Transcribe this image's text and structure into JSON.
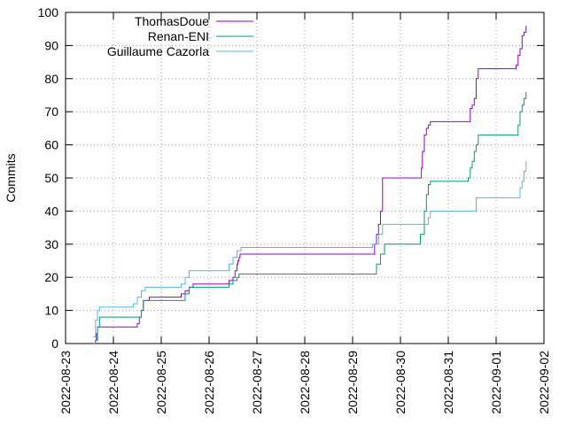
{
  "chart_data": {
    "type": "line",
    "title": "",
    "xlabel": "",
    "ylabel": "Commits",
    "ylim": [
      0,
      100
    ],
    "xlim": [
      "2022-08-23",
      "2022-09-02"
    ],
    "grid": true,
    "grid_style": "dotted",
    "legend_position": "top-left",
    "y_ticks": [
      0,
      10,
      20,
      30,
      40,
      50,
      60,
      70,
      80,
      90,
      100
    ],
    "x_ticks": [
      "2022-08-23",
      "2022-08-24",
      "2022-08-25",
      "2022-08-26",
      "2022-08-27",
      "2022-08-28",
      "2022-08-29",
      "2022-08-30",
      "2022-08-31",
      "2022-09-01",
      "2022-09-02"
    ],
    "series": [
      {
        "name": "ThomasDoue",
        "color": "#9400d3",
        "x": [
          "2022-08-23 14:00",
          "2022-08-23 15:00",
          "2022-08-23 15:30",
          "2022-08-23 16:00",
          "2022-08-24 11:00",
          "2022-08-24 12:00",
          "2022-08-24 13:00",
          "2022-08-24 14:00",
          "2022-08-24 15:00",
          "2022-08-24 18:00",
          "2022-08-25 10:00",
          "2022-08-25 12:00",
          "2022-08-25 14:00",
          "2022-08-25 16:00",
          "2022-08-26 10:00",
          "2022-08-26 12:00",
          "2022-08-26 13:00",
          "2022-08-26 14:00",
          "2022-08-26 14:30",
          "2022-08-26 15:00",
          "2022-08-26 15:30",
          "2022-08-29 10:00",
          "2022-08-29 11:00",
          "2022-08-29 12:00",
          "2022-08-29 13:00",
          "2022-08-29 14:00",
          "2022-08-29 15:00",
          "2022-08-30 10:00",
          "2022-08-30 10:30",
          "2022-08-30 11:00",
          "2022-08-30 12:00",
          "2022-08-30 13:00",
          "2022-08-30 14:00",
          "2022-08-30 15:00",
          "2022-08-31 10:00",
          "2022-08-31 11:00",
          "2022-08-31 12:00",
          "2022-08-31 13:00",
          "2022-08-31 14:00",
          "2022-08-31 15:00",
          "2022-09-01 10:00",
          "2022-09-01 11:00",
          "2022-09-01 12:00",
          "2022-09-01 13:00",
          "2022-09-01 14:00",
          "2022-09-01 15:00"
        ],
        "values": [
          0,
          1,
          3,
          5,
          5,
          6,
          8,
          10,
          13,
          14,
          15,
          16,
          17,
          18,
          19,
          20,
          22,
          24,
          25,
          26,
          27,
          27,
          30,
          33,
          36,
          40,
          50,
          50,
          53,
          58,
          63,
          65,
          66,
          67,
          67,
          71,
          72,
          74,
          80,
          83,
          84,
          87,
          89,
          93,
          94,
          96
        ]
      },
      {
        "name": "Renan-ENI",
        "color": "#009e73",
        "x": [
          "2022-08-23 15:00",
          "2022-08-23 16:00",
          "2022-08-23 17:00",
          "2022-08-24 12:00",
          "2022-08-24 14:00",
          "2022-08-24 15:00",
          "2022-08-25 10:00",
          "2022-08-25 12:00",
          "2022-08-25 14:00",
          "2022-08-26 10:00",
          "2022-08-26 12:00",
          "2022-08-26 14:00",
          "2022-08-26 15:00",
          "2022-08-29 10:00",
          "2022-08-29 12:00",
          "2022-08-29 14:00",
          "2022-08-29 16:00",
          "2022-08-30 10:00",
          "2022-08-30 12:00",
          "2022-08-30 13:00",
          "2022-08-30 14:00",
          "2022-08-30 15:00",
          "2022-08-31 10:00",
          "2022-08-31 11:00",
          "2022-08-31 12:00",
          "2022-08-31 13:00",
          "2022-08-31 14:00",
          "2022-08-31 15:00",
          "2022-09-01 10:00",
          "2022-09-01 11:00",
          "2022-09-01 12:00",
          "2022-09-01 13:00",
          "2022-09-01 14:00",
          "2022-09-01 15:00"
        ],
        "values": [
          1,
          5,
          8,
          8,
          10,
          13,
          13,
          15,
          17,
          18,
          19,
          20,
          21,
          21,
          24,
          27,
          30,
          33,
          40,
          45,
          48,
          49,
          50,
          53,
          55,
          58,
          60,
          63,
          63,
          66,
          70,
          72,
          74,
          76
        ]
      },
      {
        "name": "Guillaume Cazorla",
        "color": "#56b4e9",
        "x": [
          "2022-08-23 14:00",
          "2022-08-23 15:00",
          "2022-08-23 16:00",
          "2022-08-23 17:00",
          "2022-08-24 10:00",
          "2022-08-24 12:00",
          "2022-08-24 14:00",
          "2022-08-24 16:00",
          "2022-08-25 10:00",
          "2022-08-25 12:00",
          "2022-08-25 14:00",
          "2022-08-26 10:00",
          "2022-08-26 12:00",
          "2022-08-26 14:00",
          "2022-08-26 16:00",
          "2022-08-29 10:00",
          "2022-08-29 13:00",
          "2022-08-29 15:00",
          "2022-08-30 10:00",
          "2022-08-30 14:00",
          "2022-08-30 15:00",
          "2022-08-31 10:00",
          "2022-08-31 14:00",
          "2022-09-01 10:00",
          "2022-09-01 12:00",
          "2022-09-01 13:00",
          "2022-09-01 14:00",
          "2022-09-01 15:00"
        ],
        "values": [
          2,
          7,
          10,
          11,
          12,
          14,
          16,
          17,
          18,
          20,
          22,
          24,
          26,
          28,
          29,
          30,
          33,
          36,
          36,
          38,
          40,
          40,
          44,
          44,
          47,
          49,
          52,
          55
        ]
      }
    ]
  }
}
